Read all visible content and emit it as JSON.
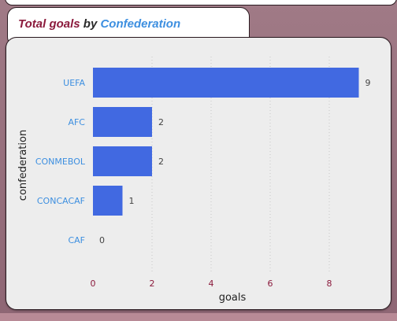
{
  "title": {
    "part1": "Total goals",
    "part2": " by ",
    "part3": "Confederation"
  },
  "colors": {
    "bar": "#4169e1",
    "category_label": "#3d8fe0",
    "tick_label": "#8b1a3c",
    "data_label": "#444444",
    "axis_title": "#222222",
    "title_primary": "#8b1a3c",
    "title_accent": "#3d8fe0"
  },
  "chart_data": {
    "type": "bar",
    "orientation": "horizontal",
    "categories": [
      "UEFA",
      "AFC",
      "CONMEBOL",
      "CONCACAF",
      "CAF"
    ],
    "values": [
      9,
      2,
      2,
      1,
      0
    ],
    "xlabel": "goals",
    "ylabel": "confederation",
    "xlim": [
      0,
      9
    ],
    "xticks": [
      0,
      2,
      4,
      6,
      8
    ],
    "grid": true,
    "data_labels": true
  }
}
